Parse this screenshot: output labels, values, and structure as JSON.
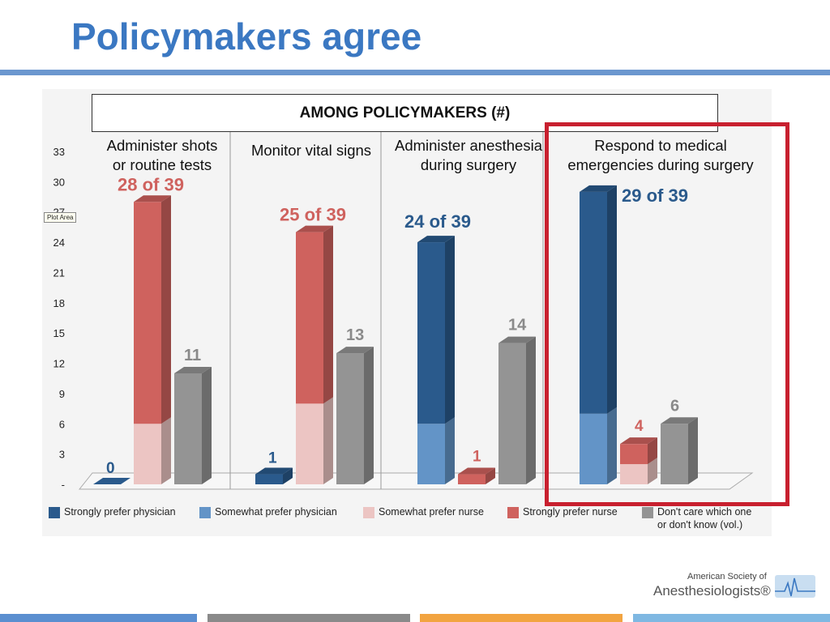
{
  "slide": {
    "title": "Policymakers agree",
    "plot_area_tooltip": "Plot Area"
  },
  "colors": {
    "title": "#3b78c2",
    "strongly_prefer_physician": "#2a5a8c",
    "somewhat_prefer_physician": "#6394c7",
    "somewhat_prefer_nurse": "#ecc5c3",
    "strongly_prefer_nurse": "#cf625e",
    "dont_care": "#949494",
    "highlight_box": "#c8202f",
    "footer": [
      "#5b8fd0",
      "#8a8a8a",
      "#f2a440",
      "#7fb8e2"
    ]
  },
  "chart_data": {
    "type": "bar",
    "title": "AMONG POLICYMAKERS (#)",
    "ylim": [
      0,
      33
    ],
    "y_ticks": [
      "-",
      "3",
      "6",
      "9",
      "12",
      "15",
      "18",
      "21",
      "24",
      "27",
      "30",
      "33"
    ],
    "categories": [
      "Administer shots or routine tests",
      "Monitor vital signs",
      "Administer anesthesia during surgery",
      "Respond to medical emergencies during surgery"
    ],
    "category_label_lines": [
      [
        "Administer shots",
        "or routine tests"
      ],
      [
        "Monitor vital signs"
      ],
      [
        "Administer anesthesia",
        "during surgery"
      ],
      [
        "Respond to medical",
        "emergencies during surgery"
      ]
    ],
    "legend": [
      "Strongly prefer physician",
      "Somewhat prefer physician",
      "Somewhat prefer nurse",
      "Strongly prefer nurse",
      "Don't care which one\nor don't know (vol.)"
    ],
    "groups": [
      {
        "bars": [
          {
            "kind": "physician",
            "label": "0",
            "strongly": 0,
            "somewhat": 0
          },
          {
            "kind": "nurse",
            "label": "28 of 39",
            "strongly": 22,
            "somewhat": 6
          },
          {
            "kind": "dontcare",
            "label": "11",
            "value": 11
          }
        ]
      },
      {
        "bars": [
          {
            "kind": "physician",
            "label": "1",
            "strongly": 1,
            "somewhat": 0
          },
          {
            "kind": "nurse",
            "label": "25 of 39",
            "strongly": 17,
            "somewhat": 8
          },
          {
            "kind": "dontcare",
            "label": "13",
            "value": 13
          }
        ]
      },
      {
        "bars": [
          {
            "kind": "physician",
            "label": "24 of 39",
            "strongly": 18,
            "somewhat": 6
          },
          {
            "kind": "nurse",
            "label": "1",
            "strongly": 1,
            "somewhat": 0
          },
          {
            "kind": "dontcare",
            "label": "14",
            "value": 14
          }
        ]
      },
      {
        "bars": [
          {
            "kind": "physician",
            "label": "29 of 39",
            "strongly": 22,
            "somewhat": 7
          },
          {
            "kind": "nurse",
            "label": "4",
            "strongly": 2,
            "somewhat": 2
          },
          {
            "kind": "dontcare",
            "label": "6",
            "value": 6
          }
        ]
      }
    ],
    "highlighted_category": "Respond to medical emergencies during surgery"
  },
  "logo": {
    "line1": "American Society of",
    "line2": "Anesthesiologists®"
  }
}
